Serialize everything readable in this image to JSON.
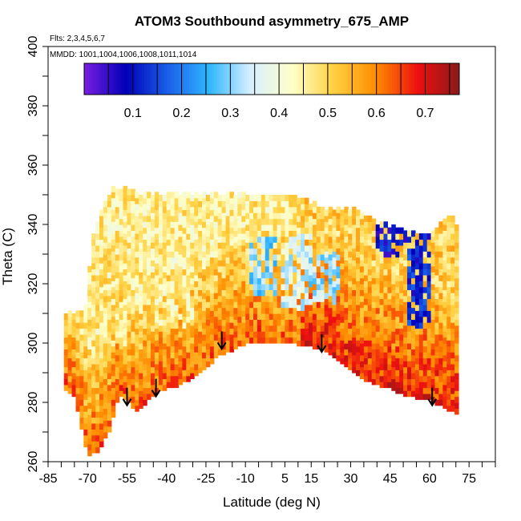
{
  "chart_data": {
    "type": "heatmap",
    "title": "ATOM3 Southbound asymmetry_675_AMP",
    "subtitle_flights": "Flts: 2,3,4,5,6,7",
    "subtitle_dates": "MMDD: 1001,1004,1006,1008,1011,1014",
    "xlabel": "Latitude (deg N)",
    "ylabel": "Theta (C)",
    "xlim": [
      -85,
      85
    ],
    "ylim": [
      260,
      400
    ],
    "x_ticks": [
      -85,
      -70,
      -55,
      -40,
      -25,
      -10,
      5,
      15,
      30,
      45,
      60,
      75
    ],
    "y_ticks": [
      260,
      280,
      300,
      320,
      340,
      360,
      380,
      400
    ],
    "colorbar": {
      "range": [
        0,
        0.77
      ],
      "ticks": [
        0.1,
        0.2,
        0.3,
        0.4,
        0.5,
        0.6,
        0.7
      ],
      "colors": [
        "#7a1fe0",
        "#0000b8",
        "#1a5fe8",
        "#2fb7ff",
        "#d8f0ff",
        "#ffffc8",
        "#ffd040",
        "#ff8c00",
        "#ee1010",
        "#8a1a1a"
      ]
    },
    "domain_upper": [
      [
        -71,
        310
      ],
      [
        -68,
        336
      ],
      [
        -64,
        346
      ],
      [
        -60,
        352
      ],
      [
        -55,
        352
      ],
      [
        -50,
        350
      ],
      [
        -45,
        349
      ],
      [
        -35,
        350
      ],
      [
        -25,
        350
      ],
      [
        -10,
        350
      ],
      [
        5,
        350
      ],
      [
        10,
        348
      ],
      [
        20,
        345
      ],
      [
        30,
        345
      ],
      [
        40,
        340
      ],
      [
        50,
        337
      ],
      [
        60,
        336
      ],
      [
        66,
        342
      ],
      [
        70,
        342
      ],
      [
        71,
        330
      ]
    ],
    "domain_lower": [
      [
        71,
        276
      ],
      [
        65,
        279
      ],
      [
        60,
        281
      ],
      [
        55,
        282
      ],
      [
        50,
        283
      ],
      [
        45,
        285
      ],
      [
        35,
        288
      ],
      [
        30,
        291
      ],
      [
        25,
        295
      ],
      [
        20,
        298
      ],
      [
        10,
        300
      ],
      [
        5,
        300
      ],
      [
        -5,
        301
      ],
      [
        -10,
        300
      ],
      [
        -15,
        298
      ],
      [
        -20,
        296
      ],
      [
        -25,
        292
      ],
      [
        -30,
        289
      ],
      [
        -35,
        286
      ],
      [
        -40,
        285
      ],
      [
        -45,
        283
      ],
      [
        -48,
        280
      ],
      [
        -51,
        277
      ],
      [
        -55,
        281
      ],
      [
        -58,
        283
      ],
      [
        -62,
        270
      ],
      [
        -66,
        264
      ],
      [
        -70,
        262
      ],
      [
        -72,
        270
      ],
      [
        -75,
        282
      ],
      [
        -79,
        285
      ]
    ],
    "arrows": [
      {
        "lat": -55,
        "theta": 279
      },
      {
        "lat": -44,
        "theta": 282
      },
      {
        "lat": -19,
        "theta": 298
      },
      {
        "lat": 19,
        "theta": 297
      },
      {
        "lat": 61,
        "theta": 279
      }
    ],
    "low_regions": [
      {
        "lat": [
          -8,
          2
        ],
        "theta": [
          316,
          336
        ],
        "value": 0.3
      },
      {
        "lat": [
          3,
          15
        ],
        "theta": [
          312,
          336
        ],
        "value": 0.35
      },
      {
        "lat": [
          14,
          26
        ],
        "theta": [
          314,
          330
        ],
        "value": 0.32
      },
      {
        "lat": [
          40,
          58
        ],
        "theta": [
          330,
          340
        ],
        "value": 0.1
      },
      {
        "lat": [
          52,
          60
        ],
        "theta": [
          306,
          336
        ],
        "value": 0.12
      },
      {
        "lat": [
          -45,
          -30
        ],
        "theta": [
          306,
          332
        ],
        "value": 0.45
      },
      {
        "lat": [
          -68,
          -55
        ],
        "theta": [
          298,
          336
        ],
        "value": 0.48
      }
    ]
  }
}
